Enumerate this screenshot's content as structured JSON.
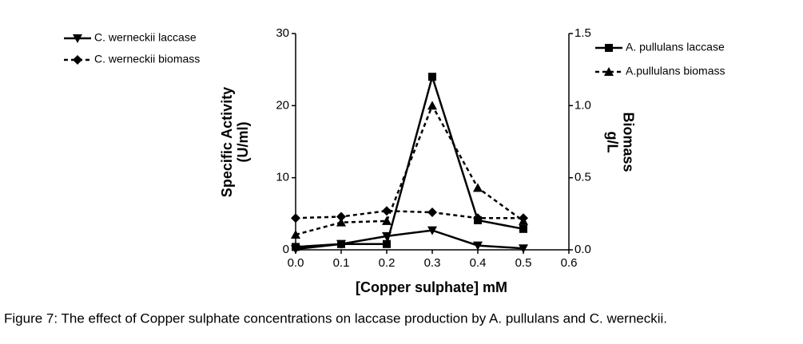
{
  "chart_data": {
    "type": "line",
    "x_label": "[Copper sulphate] mM",
    "y_label": [
      "Specific Activity",
      "(U/ml)"
    ],
    "y2_label": [
      "Biomass",
      "g/L"
    ],
    "caption": "Figure 7: The effect of Copper sulphate concentrations on laccase production by A. pullulans and C. werneckii.",
    "x": [
      0,
      0.1,
      0.2,
      0.3,
      0.4,
      0.5
    ],
    "xlim": [
      0,
      0.6
    ],
    "xticks": [
      {
        "value": 0,
        "label": "0.0"
      },
      0.1,
      0.2,
      0.3,
      0.4,
      0.5,
      0.6
    ],
    "ylim": [
      0,
      30
    ],
    "yticks": [
      0,
      10,
      20,
      30
    ],
    "y2lim": [
      0,
      1.5
    ],
    "y2ticks": [
      {
        "value": 0,
        "label": "0.0"
      },
      0.5,
      {
        "value": 1,
        "label": "1.0"
      },
      1.5
    ],
    "series": [
      {
        "name": "C. werneckii laccase",
        "color": "#000000",
        "marker": "triangle-down",
        "dashed": false,
        "values": [
          0.1,
          0.8,
          1.9,
          2.7,
          0.6,
          0.2
        ]
      },
      {
        "name": "C. werneckii biomass",
        "color": "#000000",
        "marker": "diamond",
        "dashed": true,
        "axis": "y2",
        "values": [
          0.22,
          0.23,
          0.27,
          0.26,
          0.22,
          0.22
        ]
      },
      {
        "name": "A. pullulans laccase",
        "color": "#000000",
        "marker": "square",
        "dashed": false,
        "values": [
          0.4,
          0.8,
          0.8,
          24,
          4.1,
          2.9
        ]
      },
      {
        "name": "A.pullulans biomass",
        "color": "#000000",
        "marker": "triangle-up",
        "dashed": true,
        "axis": "y2",
        "values": [
          0.105,
          0.19,
          0.2,
          1.0,
          0.43,
          0.2
        ]
      }
    ]
  }
}
